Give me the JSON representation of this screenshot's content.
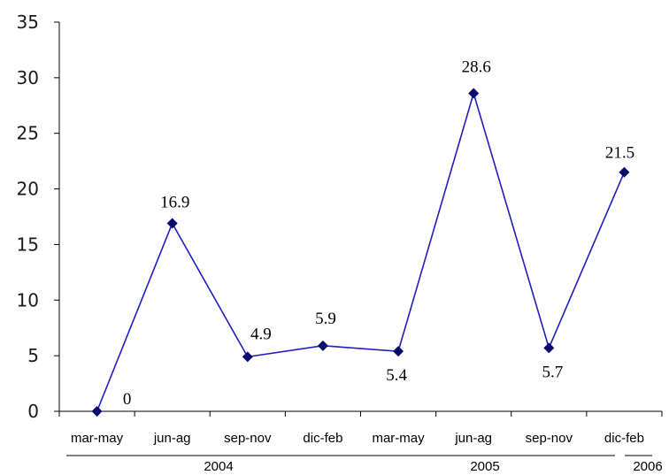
{
  "chart_data": {
    "type": "line",
    "title": "",
    "xlabel": "",
    "ylabel": "",
    "ylim": [
      0,
      35
    ],
    "yticks": [
      0,
      5,
      10,
      15,
      20,
      25,
      30,
      35
    ],
    "categories": [
      "mar-may",
      "jun-ag",
      "sep-nov",
      "dic-feb",
      "mar-may",
      "jun-ag",
      "sep-nov",
      "dic-feb"
    ],
    "groups": [
      {
        "label": "2004",
        "categories": [
          0,
          1,
          2,
          3
        ]
      },
      {
        "label": "2005",
        "categories": [
          4,
          5,
          6,
          7
        ]
      },
      {
        "label": "2006",
        "categories": [
          7
        ]
      }
    ],
    "series": [
      {
        "values": [
          0,
          16.9,
          4.9,
          5.9,
          5.4,
          28.6,
          5.7,
          21.5
        ],
        "color": "#1f1fbf"
      }
    ],
    "data_labels": [
      "0",
      "16.9",
      "4.9",
      "5.9",
      "5.4",
      "28.6",
      "5.7",
      "21.5"
    ],
    "grid": false,
    "legend": "none"
  }
}
